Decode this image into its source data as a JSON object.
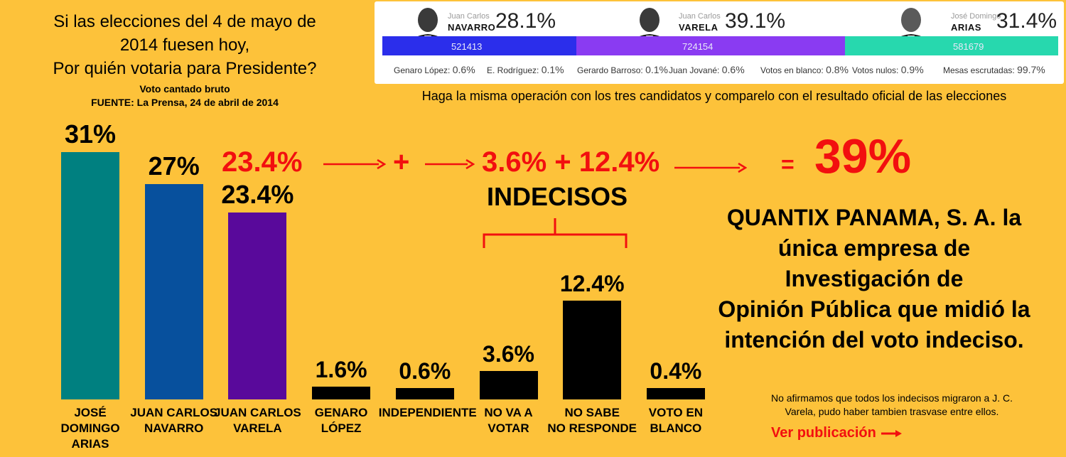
{
  "question": {
    "line1": "Si las elecciones del 4 de mayo de",
    "line2": "2014 fuesen hoy,",
    "line3": "Por quién votaria para Presidente?",
    "sub1": "Voto cantado bruto",
    "sub2": "FUENTE: La Prensa, 24 de abril de 2014"
  },
  "results": {
    "candidates": [
      {
        "first": "Juan Carlos",
        "last": "NAVARRO",
        "pct": "28.1%",
        "votes": "521413",
        "color": "#2B2EEB"
      },
      {
        "first": "Juan Carlos",
        "last": "VARELA",
        "pct": "39.1%",
        "votes": "724154",
        "color": "#8A3BF2"
      },
      {
        "first": "José Domingo",
        "last": "ARIAS",
        "pct": "31.4%",
        "votes": "581679",
        "color": "#27D8AE"
      }
    ],
    "minor": [
      {
        "label": "Genaro López:",
        "value": "0.6%"
      },
      {
        "label": "E. Rodríguez:",
        "value": "0.1%"
      },
      {
        "label": "Gerardo Barroso:",
        "value": "0.1%"
      },
      {
        "label": "Juan Jované:",
        "value": "0.6%"
      },
      {
        "label": "Votos en blanco:",
        "value": "0.8%"
      },
      {
        "label": "Votos nulos:",
        "value": "0.9%"
      },
      {
        "label": "Mesas escrutadas:",
        "value": "99.7%"
      }
    ]
  },
  "hint": "Haga la misma operación con  los tres candidatos y comparelo con el resultado oficial de las elecciones",
  "equation": {
    "start": "23.4%",
    "plus1": "+",
    "terms": "3.6% + 12.4%",
    "equals": "=",
    "result": "39%",
    "group_label": "INDECISOS"
  },
  "chart_data": {
    "type": "bar",
    "categories": [
      "JOSÉ DOMINGO ARIAS",
      "JUAN CARLOS NAVARRO",
      "JUAN CARLOS VARELA",
      "GENARO LÓPEZ",
      "INDEPENDIENTE",
      "NO VA A VOTAR",
      "NO SABE NO RESPONDE",
      "VOTO EN BLANCO"
    ],
    "category_lines": [
      [
        "JOSÉ DOMINGO",
        "ARIAS"
      ],
      [
        "JUAN CARLOS",
        "NAVARRO"
      ],
      [
        "JUAN CARLOS",
        "VARELA"
      ],
      [
        "GENARO",
        "LÓPEZ"
      ],
      [
        "INDEPENDIENTE",
        ""
      ],
      [
        "NO VA A",
        "VOTAR"
      ],
      [
        "NO SABE",
        "NO RESPONDE"
      ],
      [
        "VOTO EN",
        "BLANCO"
      ]
    ],
    "values": [
      31,
      27,
      23.4,
      1.6,
      0.6,
      3.6,
      12.4,
      0.4
    ],
    "value_labels": [
      "31%",
      "27%",
      "23.4%",
      "1.6%",
      "0.6%",
      "3.6%",
      "12.4%",
      "0.4%"
    ],
    "colors": [
      "#008080",
      "#07509D",
      "#59099B",
      "#000000",
      "#000000",
      "#000000",
      "#000000",
      "#000000"
    ],
    "ylim": [
      0,
      31
    ],
    "grid": false
  },
  "quantix": {
    "lines": [
      "QUANTIX PANAMA, S. A. la",
      "única empresa de",
      "Investigación de",
      "Opinión Pública que midió la",
      "intención del voto indeciso."
    ]
  },
  "note": {
    "line1": "No afirmamos que todos los indecisos migraron a J. C.",
    "line2": "Varela,  pudo haber tambien trasvase entre ellos."
  },
  "link": {
    "label": "Ver publicación"
  }
}
